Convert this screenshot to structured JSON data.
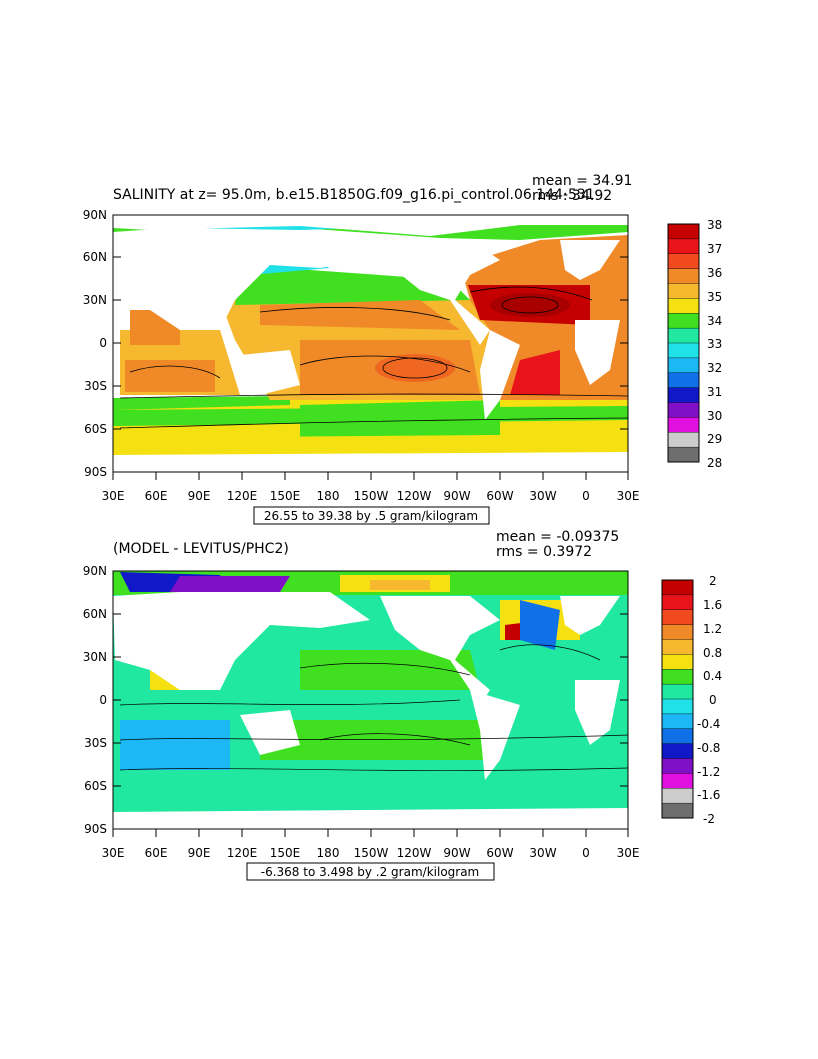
{
  "top": {
    "title": "SALINITY at z=  95.0m, b.e15.B1850G.f09_g16.pi_control.06 144-531",
    "mean": "mean = 34.91",
    "rms": "rms : 34.92",
    "contour_info": "26.55 to 39.38 by .5 gram/kilogram",
    "colorbar": {
      "labels": [
        "38",
        "37",
        "36",
        "35",
        "34",
        "33",
        "32",
        "31",
        "30",
        "29",
        "28"
      ],
      "colors": [
        "#c40000",
        "#e8141a",
        "#f04a1e",
        "#f08a28",
        "#f5b82e",
        "#f5e012",
        "#40e020",
        "#20e8a0",
        "#20e0e8",
        "#1cb8f5",
        "#1070e8",
        "#1018c8",
        "#8010c8",
        "#e010e0",
        "#cccccc",
        "#6e6e6e"
      ]
    }
  },
  "bottom": {
    "title": "(MODEL - LEVITUS/PHC2)",
    "mean": "mean = -0.09375",
    "rms": "rms = 0.3972",
    "contour_info": "-6.368 to 3.498 by .2 gram/kilogram",
    "colorbar": {
      "labels": [
        "2",
        "1.6",
        "1.2",
        "0.8",
        "0.4",
        "0",
        "-0.4",
        "-0.8",
        "-1.2",
        "-1.6",
        "-2"
      ],
      "colors": [
        "#c40000",
        "#e8141a",
        "#f04a1e",
        "#f08a28",
        "#f5b82e",
        "#f5e012",
        "#40e020",
        "#20e8a0",
        "#20e0e8",
        "#1cb8f5",
        "#1070e8",
        "#1018c8",
        "#8010c8",
        "#e010e0",
        "#cccccc",
        "#6e6e6e"
      ]
    }
  },
  "axes": {
    "x_ticks": [
      "30E",
      "60E",
      "90E",
      "120E",
      "150E",
      "180",
      "150W",
      "120W",
      "90W",
      "60W",
      "30W",
      "0",
      "30E"
    ],
    "y_ticks": [
      "90N",
      "60N",
      "30N",
      "0",
      "30S",
      "60S",
      "90S"
    ]
  }
}
